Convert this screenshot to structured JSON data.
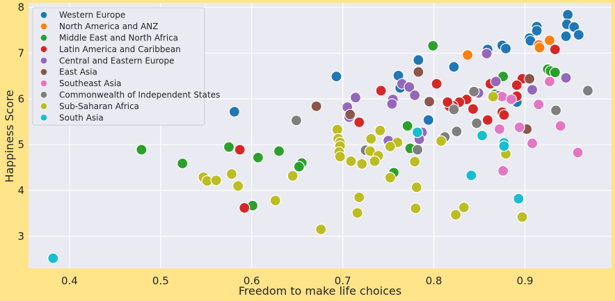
{
  "chart_data": {
    "type": "scatter",
    "title": "",
    "xlabel": "Freedom to make life choices",
    "ylabel": "Happiness Score",
    "xlim": [
      0.355,
      0.995
    ],
    "ylim": [
      2.3,
      8.1
    ],
    "xticks": [
      0.4,
      0.5,
      0.6,
      0.7,
      0.8,
      0.9
    ],
    "xtick_labels": [
      "0.4",
      "0.5",
      "0.6",
      "0.7",
      "0.8",
      "0.9"
    ],
    "yticks": [
      3,
      4,
      5,
      6,
      7,
      8
    ],
    "ytick_labels": [
      "3",
      "4",
      "5",
      "6",
      "7",
      "8"
    ],
    "grid": true,
    "legend_position": "top-left",
    "series": [
      {
        "name": "Western Europe",
        "color": "#1f77b4",
        "points": [
          [
            0.947,
            7.84
          ],
          [
            0.913,
            7.58
          ],
          [
            0.946,
            7.63
          ],
          [
            0.954,
            7.57
          ],
          [
            0.959,
            7.4
          ],
          [
            0.945,
            7.37
          ],
          [
            0.905,
            7.33
          ],
          [
            0.906,
            7.27
          ],
          [
            0.913,
            7.49
          ],
          [
            0.859,
            7.08
          ],
          [
            0.875,
            7.17
          ],
          [
            0.879,
            7.1
          ],
          [
            0.822,
            6.7
          ],
          [
            0.783,
            6.85
          ],
          [
            0.761,
            6.51
          ],
          [
            0.693,
            6.49
          ],
          [
            0.763,
            6.24
          ],
          [
            0.891,
            5.93
          ],
          [
            0.794,
            5.54
          ],
          [
            0.581,
            5.72
          ]
        ]
      },
      {
        "name": "North America and ANZ",
        "color": "#ff7f0e",
        "points": [
          [
            0.927,
            7.28
          ],
          [
            0.915,
            7.18
          ],
          [
            0.916,
            7.12
          ],
          [
            0.837,
            6.96
          ]
        ]
      },
      {
        "name": "Middle East and North Africa",
        "color": "#2ca02c",
        "points": [
          [
            0.799,
            7.16
          ],
          [
            0.925,
            6.65
          ],
          [
            0.928,
            6.61
          ],
          [
            0.933,
            6.58
          ],
          [
            0.876,
            6.49
          ],
          [
            0.867,
            6.1
          ],
          [
            0.771,
            5.41
          ],
          [
            0.774,
            4.92
          ],
          [
            0.575,
            4.95
          ],
          [
            0.63,
            4.86
          ],
          [
            0.607,
            4.72
          ],
          [
            0.655,
            4.6
          ],
          [
            0.652,
            4.52
          ],
          [
            0.524,
            4.59
          ],
          [
            0.479,
            4.89
          ],
          [
            0.756,
            4.39
          ],
          [
            0.751,
            4.29
          ],
          [
            0.601,
            3.67
          ]
        ]
      },
      {
        "name": "Latin America and Caribbean",
        "color": "#d62728",
        "points": [
          [
            0.933,
            7.08
          ],
          [
            0.897,
            6.44
          ],
          [
            0.803,
            6.33
          ],
          [
            0.862,
            6.33
          ],
          [
            0.891,
            6.3
          ],
          [
            0.742,
            6.18
          ],
          [
            0.836,
            5.99
          ],
          [
            0.828,
            5.93
          ],
          [
            0.821,
            5.85
          ],
          [
            0.817,
            5.84
          ],
          [
            0.891,
            6.06
          ],
          [
            0.815,
            5.93
          ],
          [
            0.843,
            5.78
          ],
          [
            0.875,
            5.71
          ],
          [
            0.877,
            5.65
          ],
          [
            0.859,
            5.54
          ],
          [
            0.718,
            5.49
          ],
          [
            0.587,
            4.89
          ],
          [
            0.592,
            3.62
          ]
        ]
      },
      {
        "name": "Central and Eastern Europe",
        "color": "#9467bd",
        "points": [
          [
            0.858,
            6.99
          ],
          [
            0.868,
            6.38
          ],
          [
            0.945,
            6.46
          ],
          [
            0.765,
            6.33
          ],
          [
            0.773,
            6.26
          ],
          [
            0.843,
            6.16
          ],
          [
            0.714,
            6.03
          ],
          [
            0.849,
            6.13
          ],
          [
            0.755,
            5.99
          ],
          [
            0.779,
            6.08
          ],
          [
            0.871,
            6.07
          ],
          [
            0.908,
            6.2
          ],
          [
            0.705,
            5.82
          ],
          [
            0.754,
            5.89
          ],
          [
            0.707,
            5.6
          ],
          [
            0.787,
            5.27
          ],
          [
            0.784,
            5.12
          ],
          [
            0.75,
            5.09
          ]
        ]
      },
      {
        "name": "East Asia",
        "color": "#8c564b",
        "points": [
          [
            0.783,
            6.59
          ],
          [
            0.905,
            6.44
          ],
          [
            0.671,
            5.84
          ],
          [
            0.708,
            5.66
          ],
          [
            0.795,
            5.94
          ],
          [
            0.902,
            5.34
          ]
        ]
      },
      {
        "name": "Southeast Asia",
        "color": "#e377c2",
        "points": [
          [
            0.927,
            6.38
          ],
          [
            0.875,
            6.05
          ],
          [
            0.915,
            5.88
          ],
          [
            0.885,
            5.99
          ],
          [
            0.872,
            5.34
          ],
          [
            0.939,
            5.41
          ],
          [
            0.894,
            5.38
          ],
          [
            0.908,
            5.03
          ],
          [
            0.958,
            4.83
          ],
          [
            0.876,
            4.43
          ]
        ]
      },
      {
        "name": "Commonwealth of Independent States",
        "color": "#7f7f7f",
        "points": [
          [
            0.969,
            6.18
          ],
          [
            0.844,
            6.16
          ],
          [
            0.822,
            5.77
          ],
          [
            0.847,
            5.47
          ],
          [
            0.825,
            5.29
          ],
          [
            0.812,
            5.17
          ],
          [
            0.649,
            5.53
          ],
          [
            0.782,
            4.89
          ],
          [
            0.725,
            4.88
          ],
          [
            0.934,
            5.75
          ]
        ]
      },
      {
        "name": "Sub-Saharan Africa",
        "color": "#bcbd22",
        "points": [
          [
            0.865,
            6.05
          ],
          [
            0.808,
            5.08
          ],
          [
            0.694,
            5.33
          ],
          [
            0.741,
            5.31
          ],
          [
            0.695,
            5.13
          ],
          [
            0.697,
            5.05
          ],
          [
            0.731,
            5.13
          ],
          [
            0.76,
            5.05
          ],
          [
            0.752,
            4.96
          ],
          [
            0.697,
            4.97
          ],
          [
            0.696,
            4.84
          ],
          [
            0.73,
            4.86
          ],
          [
            0.739,
            4.76
          ],
          [
            0.879,
            4.8
          ],
          [
            0.697,
            4.74
          ],
          [
            0.709,
            4.64
          ],
          [
            0.721,
            4.58
          ],
          [
            0.735,
            4.64
          ],
          [
            0.779,
            4.63
          ],
          [
            0.645,
            4.32
          ],
          [
            0.578,
            4.36
          ],
          [
            0.547,
            4.29
          ],
          [
            0.551,
            4.21
          ],
          [
            0.561,
            4.22
          ],
          [
            0.585,
            4.1
          ],
          [
            0.752,
            4.28
          ],
          [
            0.781,
            4.07
          ],
          [
            0.718,
            3.85
          ],
          [
            0.626,
            3.78
          ],
          [
            0.716,
            3.51
          ],
          [
            0.78,
            3.61
          ],
          [
            0.833,
            3.63
          ],
          [
            0.824,
            3.47
          ],
          [
            0.897,
            3.42
          ],
          [
            0.676,
            3.15
          ]
        ]
      },
      {
        "name": "South Asia",
        "color": "#17becf",
        "points": [
          [
            0.782,
            5.27
          ],
          [
            0.853,
            5.2
          ],
          [
            0.877,
            5.04
          ],
          [
            0.877,
            4.97
          ],
          [
            0.841,
            4.33
          ],
          [
            0.893,
            3.82
          ],
          [
            0.382,
            2.52
          ]
        ]
      }
    ]
  }
}
